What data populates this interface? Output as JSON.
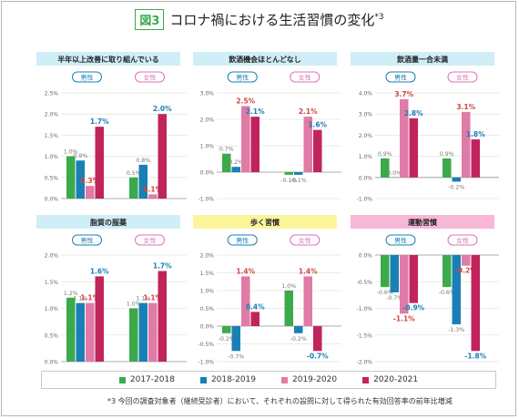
{
  "header": {
    "badge": "図3",
    "title": "コロナ禍における生活習慣の変化",
    "title_sup": "*3"
  },
  "colors": {
    "2017-2018": "#3aaa4a",
    "2018-2019": "#1a7fb5",
    "2019-2020": "#e07aa6",
    "2020-2021": "#c1245c"
  },
  "legend": [
    "2017-2018",
    "2018-2019",
    "2019-2020",
    "2020-2021"
  ],
  "footnote": "*3 今回の調査対象者（継続受診者）において、それぞれの設問に対して得られた有効回答率の前年比増減",
  "chart_data": [
    {
      "type": "bar",
      "title": "半年以上改善に取り組んでいる",
      "header_color": "#cfeef7",
      "groups": [
        "男性",
        "女性"
      ],
      "ylim": [
        0,
        2.5
      ],
      "ticks": [
        "0.0%",
        "0.5%",
        "1.0%",
        "1.5%",
        "2.0%",
        "2.5%"
      ],
      "tick_values": [
        0,
        0.5,
        1.0,
        1.5,
        2.0,
        2.5
      ],
      "values": [
        [
          1.0,
          0.9,
          0.3,
          1.7
        ],
        [
          0.5,
          0.8,
          0.1,
          2.0
        ]
      ],
      "labels": [
        [
          "1.0%",
          "0.9%",
          "0.3%",
          "1.7%"
        ],
        [
          "0.5%",
          "0.8%",
          "0.1%",
          "2.0%"
        ]
      ]
    },
    {
      "type": "bar",
      "title": "飲酒機会ほとんどなし",
      "header_color": "#cfeef7",
      "groups": [
        "男性",
        "女性"
      ],
      "ylim": [
        -1.0,
        3.0
      ],
      "ticks": [
        "-1.0%",
        "0.0%",
        "1.0%",
        "2.0%",
        "3.0%"
      ],
      "tick_values": [
        -1,
        0,
        1,
        2,
        3
      ],
      "values": [
        [
          0.7,
          0.2,
          2.5,
          2.1
        ],
        [
          -0.1,
          -0.1,
          2.1,
          1.6
        ]
      ],
      "labels": [
        [
          "0.7%",
          "0.2%",
          "2.5%",
          "2.1%"
        ],
        [
          "-0.1%",
          "-0.1%",
          "2.1%",
          "1.6%"
        ]
      ]
    },
    {
      "type": "bar",
      "title": "飲酒量一合未満",
      "header_color": "#cfeef7",
      "groups": [
        "男性",
        "女性"
      ],
      "ylim": [
        -1.0,
        4.0
      ],
      "ticks": [
        "-1.0%",
        "0.0%",
        "1.0%",
        "2.0%",
        "3.0%",
        "4.0%"
      ],
      "tick_values": [
        -1,
        0,
        1,
        2,
        3,
        4
      ],
      "values": [
        [
          0.9,
          0.0,
          3.7,
          2.8
        ],
        [
          0.9,
          -0.2,
          3.1,
          1.8
        ]
      ],
      "labels": [
        [
          "0.9%",
          "0.0%",
          "3.7%",
          "2.8%"
        ],
        [
          "0.9%",
          "-0.2%",
          "3.1%",
          "1.8%"
        ]
      ]
    },
    {
      "type": "bar",
      "title": "脂質の服薬",
      "header_color": "#cfeef7",
      "groups": [
        "男性",
        "女性"
      ],
      "ylim": [
        0,
        2.0
      ],
      "ticks": [
        "0.0%",
        "0.5%",
        "1.0%",
        "1.5%",
        "2.0%"
      ],
      "tick_values": [
        0,
        0.5,
        1.0,
        1.5,
        2.0
      ],
      "values": [
        [
          1.2,
          1.1,
          1.1,
          1.6
        ],
        [
          1.0,
          1.1,
          1.1,
          1.7
        ]
      ],
      "labels": [
        [
          "1.2%",
          "1.1%",
          "1.1%",
          "1.6%"
        ],
        [
          "1.0%",
          "1.1%",
          "1.1%",
          "1.7%"
        ]
      ]
    },
    {
      "type": "bar",
      "title": "歩く習慣",
      "header_color": "#fbf59a",
      "groups": [
        "男性",
        "女性"
      ],
      "ylim": [
        -1.0,
        2.0
      ],
      "ticks": [
        "-1.0%",
        "-0.5%",
        "0.0%",
        "0.5%",
        "1.0%",
        "1.5%",
        "2.0%"
      ],
      "tick_values": [
        -1,
        -0.5,
        0,
        0.5,
        1,
        1.5,
        2
      ],
      "values": [
        [
          -0.2,
          -0.7,
          1.4,
          0.4
        ],
        [
          1.0,
          -0.2,
          1.4,
          -0.7
        ]
      ],
      "labels": [
        [
          "-0.2%",
          "-0.7%",
          "1.4%",
          "0.4%"
        ],
        [
          "1.0%",
          "-0.2%",
          "1.4%",
          "-0.7%"
        ]
      ]
    },
    {
      "type": "bar",
      "title": "運動習慣",
      "header_color": "#f8b7d6",
      "groups": [
        "男性",
        "女性"
      ],
      "ylim": [
        -2.0,
        0.0
      ],
      "ticks": [
        "-2.0%",
        "-1.5%",
        "-1.0%",
        "-0.5%",
        "0.0%"
      ],
      "tick_values": [
        -2,
        -1.5,
        -1,
        -0.5,
        0
      ],
      "values": [
        [
          -0.6,
          -0.7,
          -1.1,
          -0.9
        ],
        [
          -0.6,
          -1.3,
          -0.2,
          -1.8
        ]
      ],
      "labels": [
        [
          "-0.6%",
          "-0.7%",
          "-1.1%",
          "-0.9%"
        ],
        [
          "-0.6%",
          "-1.3%",
          "-0.2%",
          "-1.8%"
        ]
      ]
    }
  ]
}
